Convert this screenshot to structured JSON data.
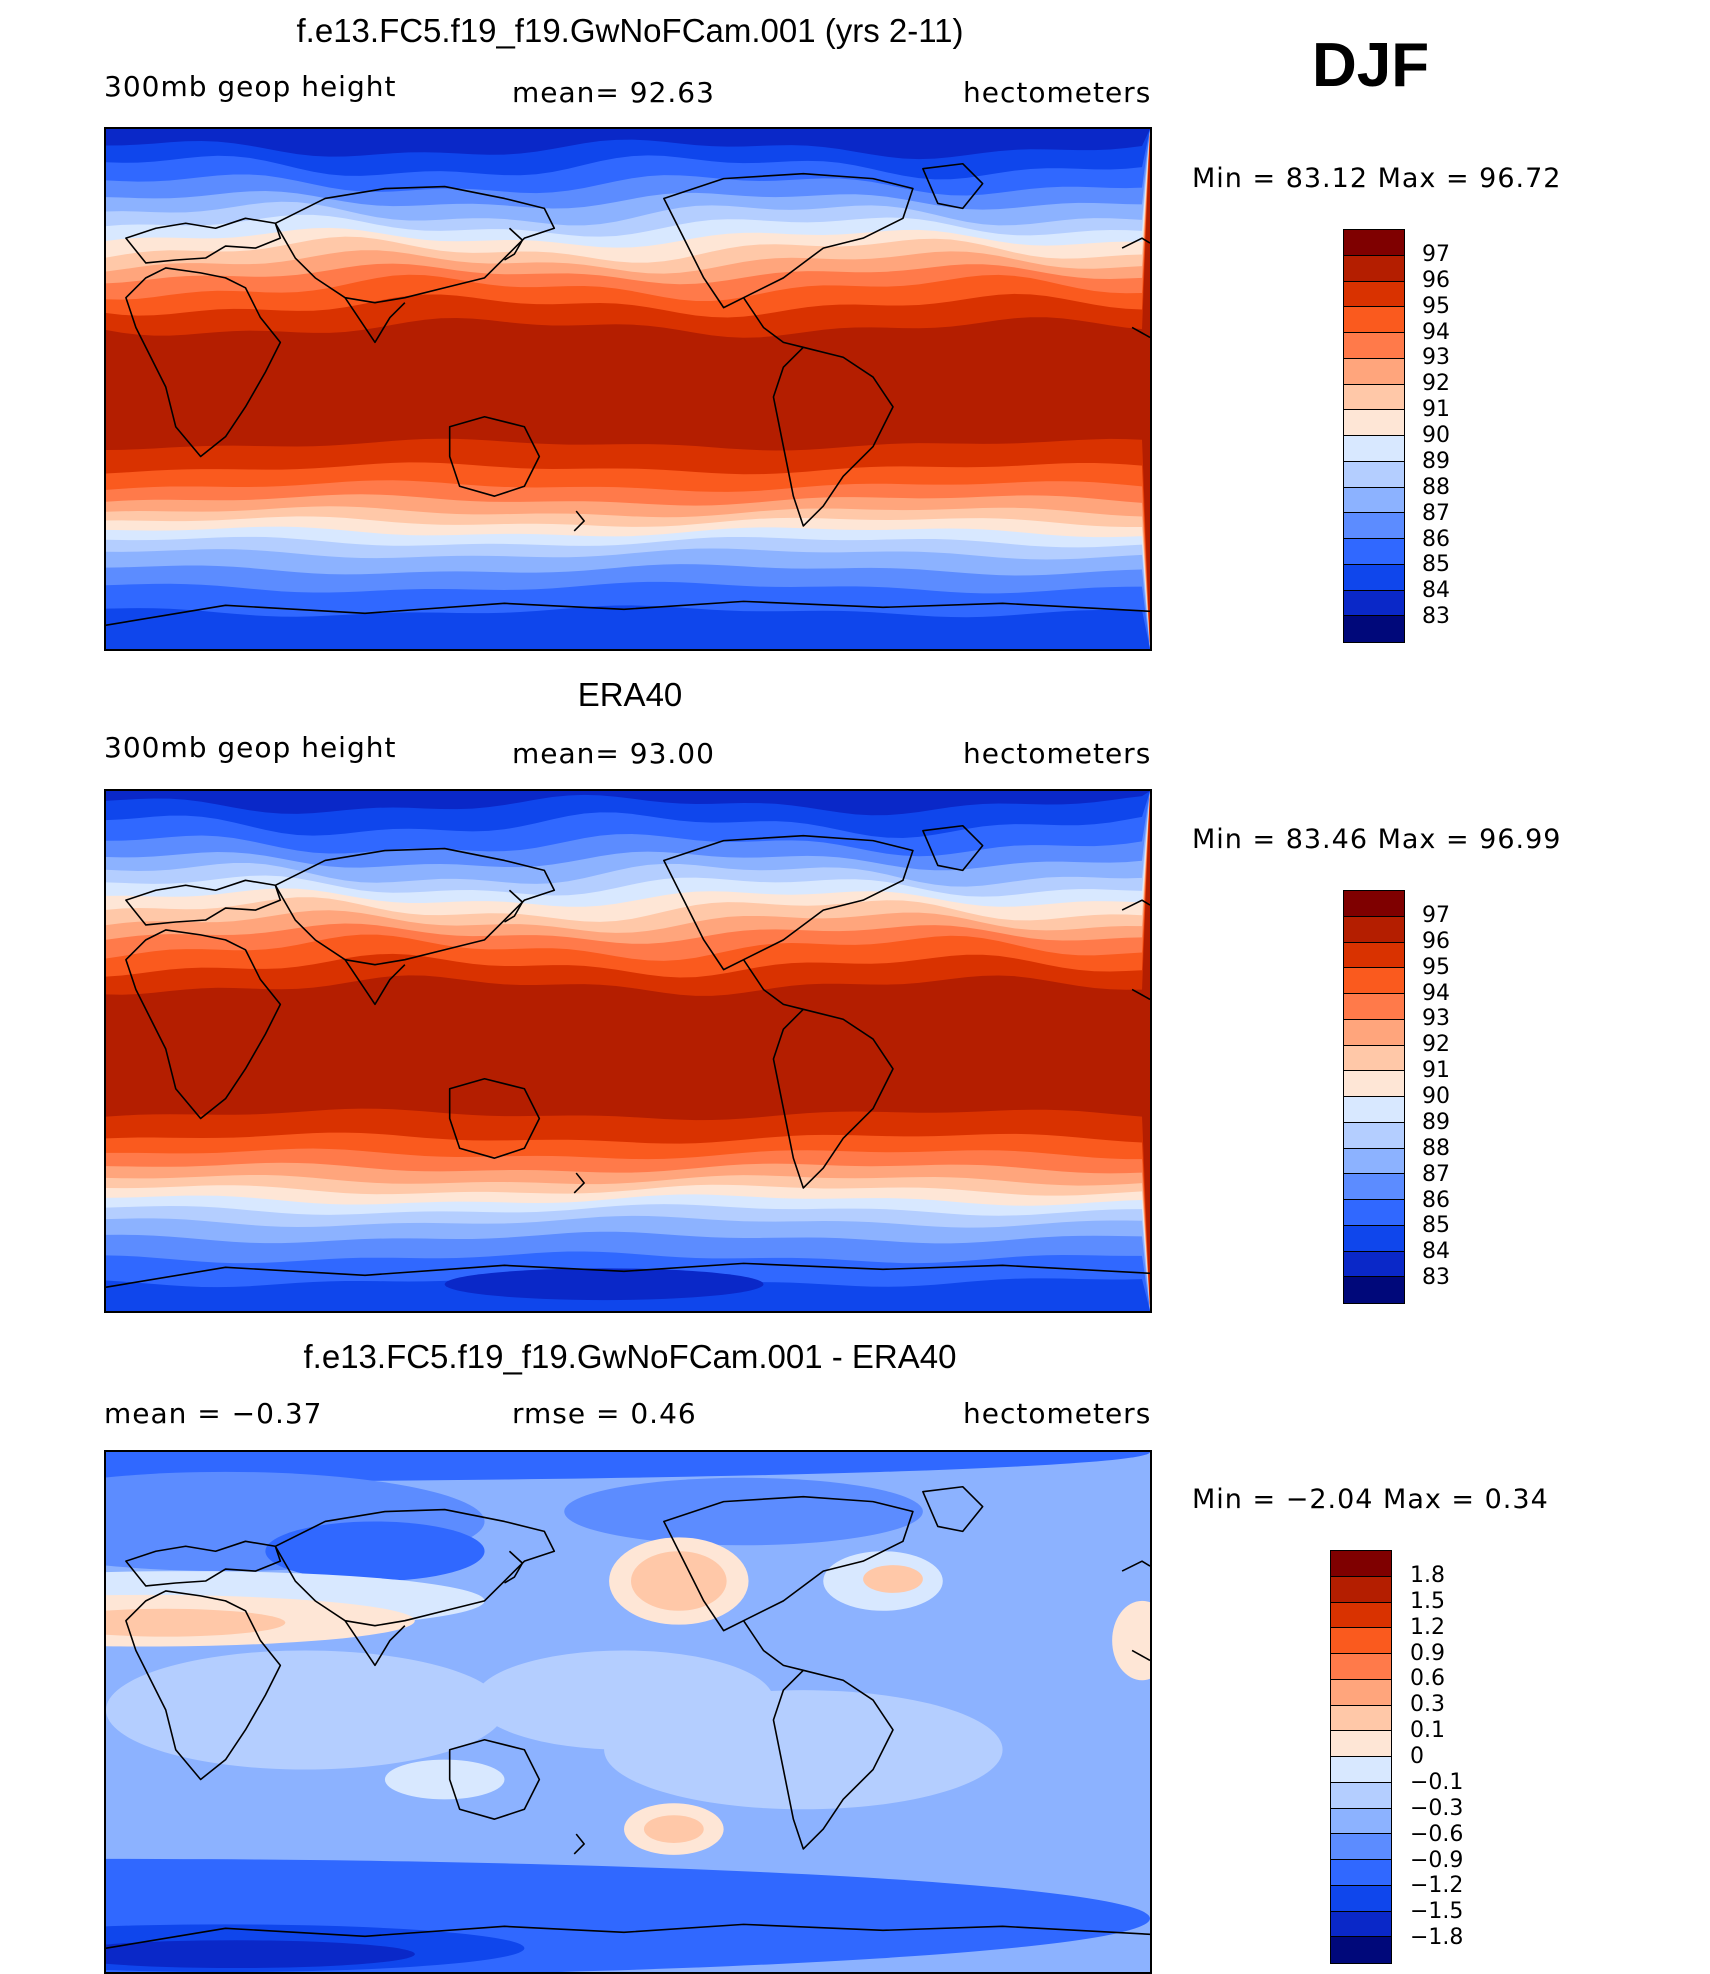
{
  "season": "DJF",
  "palettes": {
    "abs": [
      "#7f0000",
      "#b41e00",
      "#d93200",
      "#fa5a1e",
      "#ff7a4a",
      "#ffa57c",
      "#ffc8a8",
      "#fee6d6",
      "#d8e8ff",
      "#b4ceff",
      "#8cb2ff",
      "#5c8cff",
      "#3068ff",
      "#0f46ec",
      "#0a28c8",
      "#00087a"
    ],
    "diff": [
      "#7f0000",
      "#b41e00",
      "#d93200",
      "#fa5a1e",
      "#ff7a4a",
      "#ffa57c",
      "#ffc8a8",
      "#fee6d6",
      "#d8e8ff",
      "#b4ceff",
      "#8cb2ff",
      "#5c8cff",
      "#3068ff",
      "#0f46ec",
      "#0a28c8",
      "#00087a"
    ]
  },
  "panels": [
    {
      "title": "f.e13.FC5.f19_f19.GwNoFCam.001 (yrs 2-11)",
      "left_label": "300mb  geop  height",
      "center_label": "mean=   92.63",
      "right_label": "hectometers",
      "minmax": "Min  =    83.12  Max  =    96.72",
      "legend": [
        "97",
        "96",
        "95",
        "94",
        "93",
        "92",
        "91",
        "90",
        "89",
        "88",
        "87",
        "86",
        "85",
        "84",
        "83"
      ]
    },
    {
      "title": "ERA40",
      "left_label": "300mb  geop  height",
      "center_label": "mean=   93.00",
      "right_label": "hectometers",
      "minmax": "Min  =    83.46  Max  =    96.99",
      "legend": [
        "97",
        "96",
        "95",
        "94",
        "93",
        "92",
        "91",
        "90",
        "89",
        "88",
        "87",
        "86",
        "85",
        "84",
        "83"
      ]
    },
    {
      "title": "f.e13.FC5.f19_f19.GwNoFCam.001 - ERA40",
      "left_label": "mean  =    −0.37",
      "center_label": "rmse  =     0.46",
      "right_label": "hectometers",
      "minmax": "Min  =    −2.04  Max  =      0.34",
      "legend": [
        "1.8",
        "1.5",
        "1.2",
        "0.9",
        "0.6",
        "0.3",
        "0.1",
        "0",
        "−0.1",
        "−0.3",
        "−0.6",
        "−0.9",
        "−1.2",
        "−1.5",
        "−1.8"
      ]
    }
  ]
}
